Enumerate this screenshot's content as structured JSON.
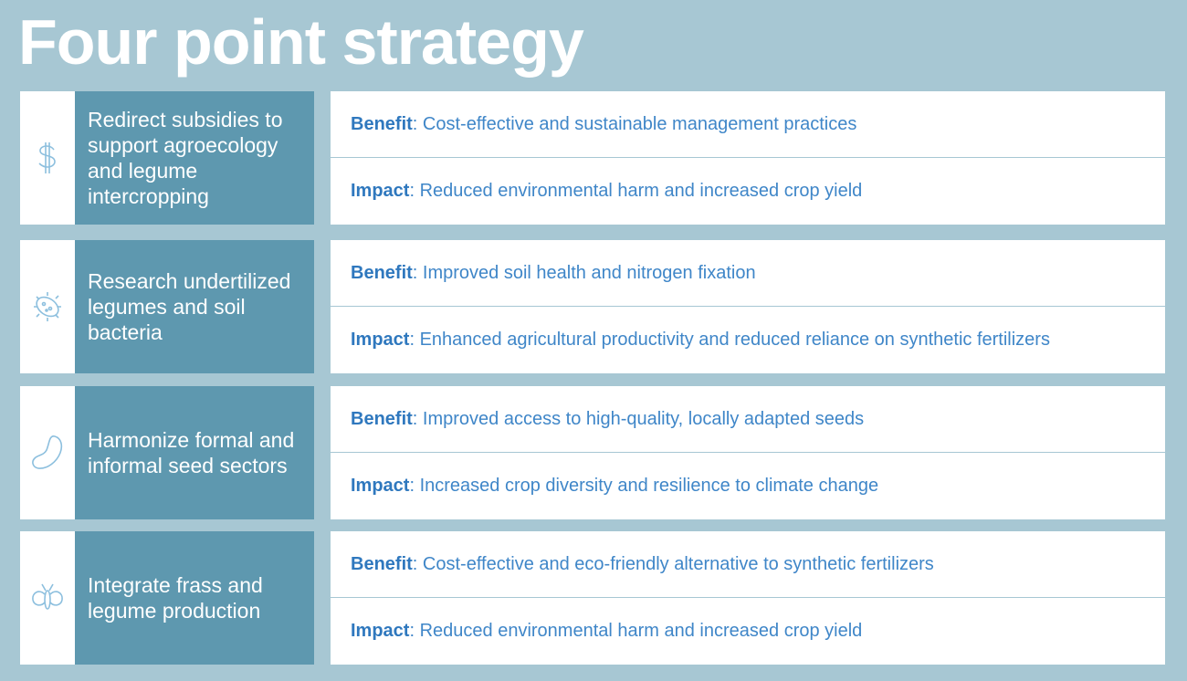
{
  "header": {
    "title": "Four point strategy"
  },
  "strategies": [
    {
      "name": "Redirect subsidies to support agroecology and legume intercropping",
      "benefit": {
        "label": "Benefit",
        "text": ": Cost-effective and sustainable management practices"
      },
      "impact": {
        "label": "Impact",
        "text": ": Reduced environmental harm and increased crop yield"
      }
    },
    {
      "name": "Research undertilized legumes and soil bacteria",
      "benefit": {
        "label": "Benefit",
        "text": ": Improved soil health and nitrogen fixation"
      },
      "impact": {
        "label": "Impact",
        "text": ": Enhanced agricultural productivity and reduced reliance on synthetic fertilizers"
      }
    },
    {
      "name": "Harmonize formal and informal seed sectors",
      "benefit": {
        "label": "Benefit",
        "text": ": Improved access to high-quality, locally adapted seeds"
      },
      "impact": {
        "label": "Impact",
        "text": ": Increased crop diversity and resilience to climate change"
      }
    },
    {
      "name": "Integrate frass and legume production",
      "benefit": {
        "label": "Benefit",
        "text": ": Cost-effective and eco-friendly alternative to synthetic fertilizers"
      },
      "impact": {
        "label": "Impact",
        "text": ": Reduced environmental harm and increased crop yield"
      }
    }
  ]
}
